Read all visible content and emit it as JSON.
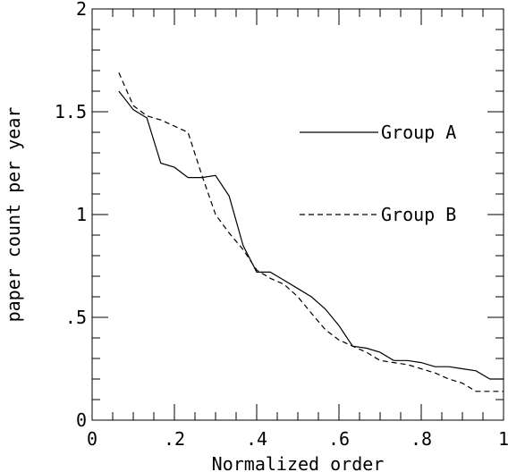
{
  "chart_data": {
    "type": "line",
    "title": "",
    "xlabel": "Normalized order",
    "ylabel": "paper count per year",
    "xlim": [
      0,
      1
    ],
    "ylim": [
      0,
      2
    ],
    "grid": false,
    "legend_position": "right",
    "x_ticks": [
      {
        "value": 0,
        "label": "0"
      },
      {
        "value": 0.2,
        "label": ".2"
      },
      {
        "value": 0.4,
        "label": ".4"
      },
      {
        "value": 0.6,
        "label": ".6"
      },
      {
        "value": 0.8,
        "label": ".8"
      },
      {
        "value": 1,
        "label": "1"
      }
    ],
    "y_ticks": [
      {
        "value": 0,
        "label": "0"
      },
      {
        "value": 0.5,
        "label": ".5"
      },
      {
        "value": 1,
        "label": "1"
      },
      {
        "value": 1.5,
        "label": "1.5"
      },
      {
        "value": 2,
        "label": "2"
      }
    ],
    "series": [
      {
        "name": "Group A",
        "line_style": "solid",
        "x": [
          0.065,
          0.1,
          0.133,
          0.167,
          0.2,
          0.233,
          0.267,
          0.3,
          0.333,
          0.367,
          0.4,
          0.433,
          0.467,
          0.5,
          0.533,
          0.567,
          0.6,
          0.633,
          0.667,
          0.7,
          0.733,
          0.767,
          0.8,
          0.833,
          0.867,
          0.9,
          0.933,
          0.967,
          1.0
        ],
        "y": [
          1.6,
          1.51,
          1.47,
          1.25,
          1.23,
          1.18,
          1.18,
          1.19,
          1.09,
          0.85,
          0.72,
          0.72,
          0.68,
          0.64,
          0.6,
          0.54,
          0.46,
          0.36,
          0.35,
          0.33,
          0.29,
          0.29,
          0.28,
          0.26,
          0.26,
          0.25,
          0.24,
          0.2,
          0.2
        ]
      },
      {
        "name": "Group B",
        "line_style": "dashed",
        "x": [
          0.065,
          0.1,
          0.133,
          0.167,
          0.2,
          0.233,
          0.267,
          0.3,
          0.333,
          0.367,
          0.4,
          0.433,
          0.467,
          0.5,
          0.533,
          0.567,
          0.6,
          0.633,
          0.667,
          0.7,
          0.733,
          0.767,
          0.8,
          0.833,
          0.867,
          0.9,
          0.933,
          0.967,
          1.0
        ],
        "y": [
          1.69,
          1.53,
          1.48,
          1.46,
          1.43,
          1.4,
          1.19,
          1.0,
          0.91,
          0.83,
          0.73,
          0.69,
          0.66,
          0.6,
          0.52,
          0.44,
          0.39,
          0.36,
          0.33,
          0.29,
          0.28,
          0.27,
          0.25,
          0.23,
          0.2,
          0.18,
          0.14,
          0.14,
          0.14
        ]
      }
    ]
  }
}
